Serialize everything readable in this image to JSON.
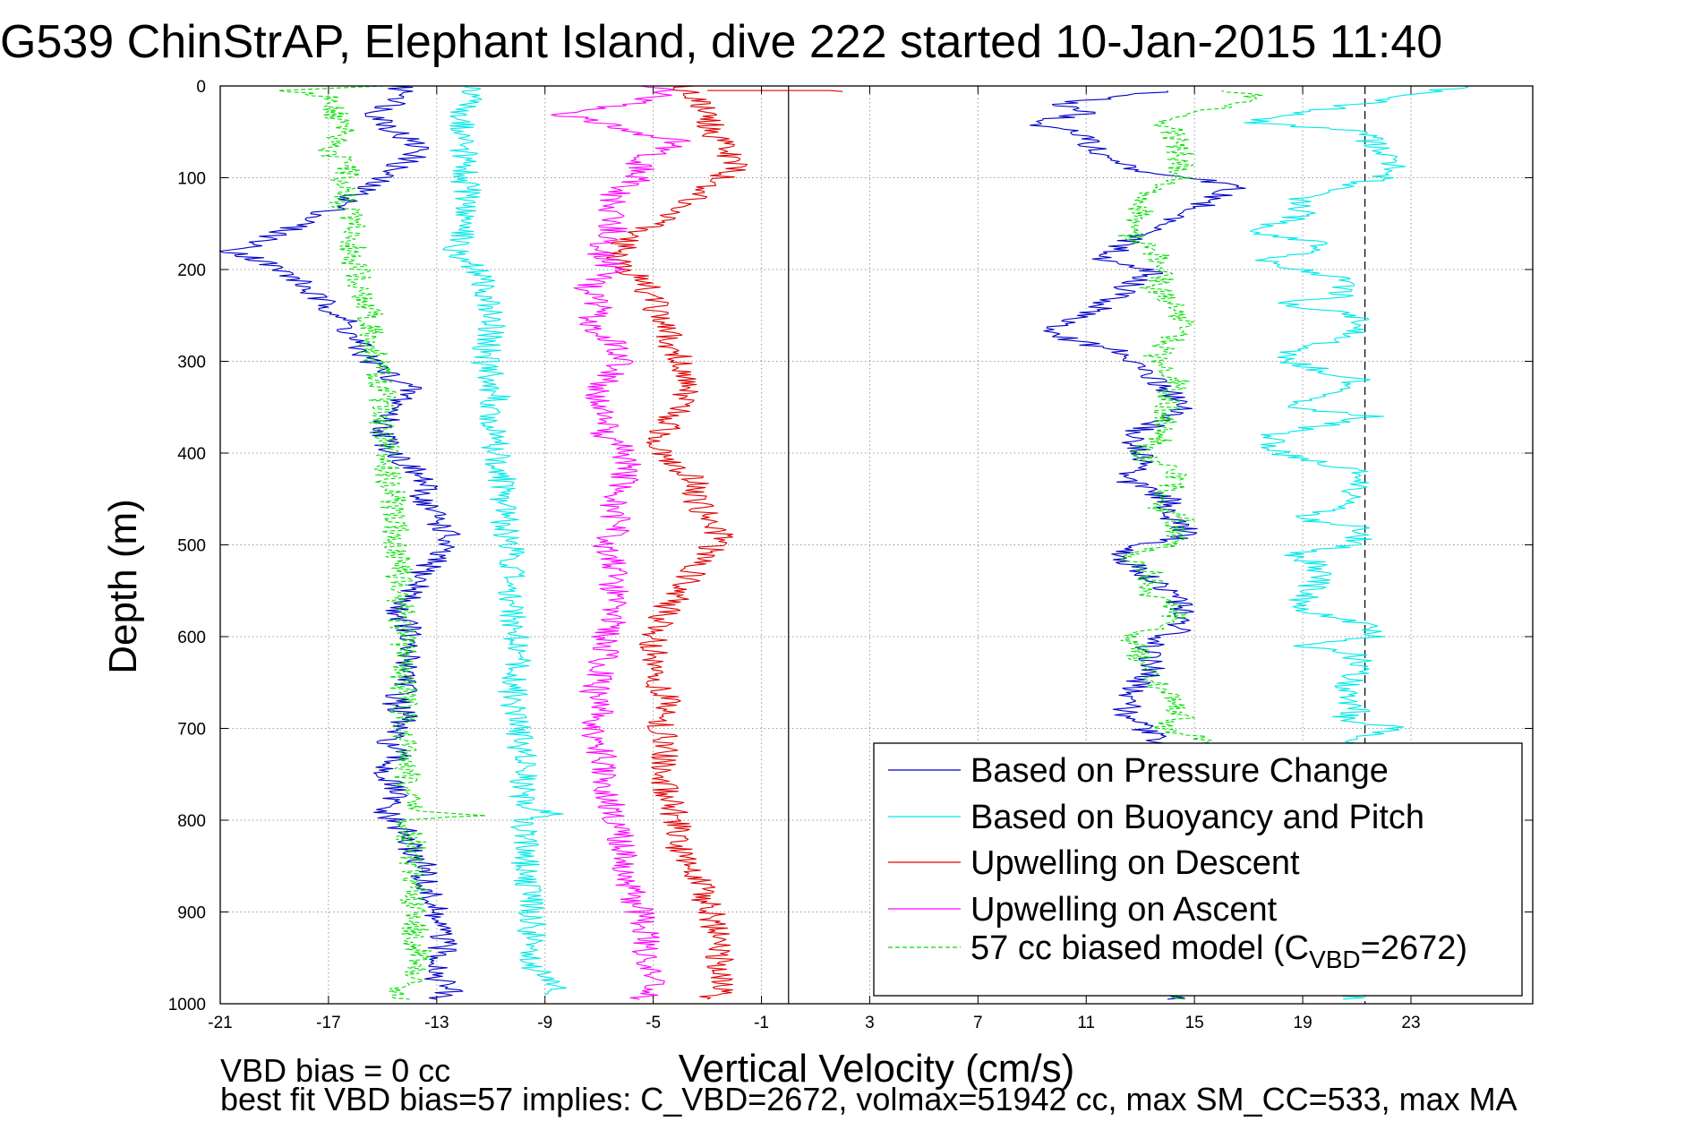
{
  "chart_data": {
    "type": "line",
    "title": "G539 ChinStrAP, Elephant Island, dive 222 started 10-Jan-2015 11:40",
    "xlabel": "Vertical Velocity (cm/s)",
    "ylabel": "Depth (m)",
    "xlim": [
      -21,
      27.5
    ],
    "ylim": [
      0,
      1000
    ],
    "y_reversed": true,
    "x_ticks": [
      -21,
      -17,
      -13,
      -9,
      -5,
      -1,
      3,
      7,
      11,
      15,
      19,
      23
    ],
    "y_ticks": [
      0,
      100,
      200,
      300,
      400,
      500,
      600,
      700,
      800,
      900,
      1000
    ],
    "grid": true,
    "legend_position": "bottom-right",
    "vlines": [
      {
        "x": 0,
        "style": "solid",
        "color": "#000000"
      },
      {
        "x": 21.3,
        "style": "dashed",
        "color": "#000000"
      }
    ],
    "series": [
      {
        "name": "Based on Pressure Change",
        "color": "#0000c8",
        "style": "solid",
        "segments": [
          {
            "depth": [
              0,
              10,
              30,
              50,
              70,
              90,
              110,
              130,
              150,
              170,
              180,
              190,
              210,
              230,
              250,
              270,
              290,
              310,
              330,
              350,
              370,
              390,
              410,
              430,
              450,
              470,
              490,
              510,
              530,
              550,
              570,
              590,
              610,
              630,
              650,
              670,
              690,
              710,
              730,
              750,
              770,
              790,
              810,
              830,
              850,
              870,
              890,
              910,
              930,
              950,
              970,
              985,
              995
            ],
            "velocity": [
              -14.5,
              -14.0,
              -15.2,
              -14.5,
              -13.5,
              -14.6,
              -15.6,
              -16.5,
              -18.0,
              -19.5,
              -20.5,
              -19.5,
              -18.2,
              -17.5,
              -16.5,
              -16.2,
              -15.8,
              -15.0,
              -14.0,
              -14.5,
              -15.0,
              -14.8,
              -14.2,
              -13.5,
              -13.5,
              -13.0,
              -12.6,
              -13.0,
              -13.5,
              -13.8,
              -14.5,
              -14.0,
              -14.2,
              -14.0,
              -14.0,
              -14.5,
              -14.2,
              -14.8,
              -14.5,
              -15.0,
              -14.5,
              -15.0,
              -14.3,
              -14.0,
              -13.5,
              -13.5,
              -13.2,
              -13.0,
              -12.8,
              -12.8,
              -13.0,
              -12.5,
              -13.0
            ]
          },
          {
            "depth": [
              995,
              985,
              960,
              940,
              910,
              880,
              850,
              820,
              790,
              760,
              730,
              710,
              700,
              690,
              670,
              650,
              630,
              610,
              590,
              570,
              550,
              530,
              510,
              500,
              490,
              470,
              450,
              430,
              410,
              390,
              380,
              370,
              350,
              330,
              310,
              290,
              270,
              250,
              230,
              210,
              200,
              190,
              170,
              150,
              130,
              110,
              100,
              90,
              70,
              50,
              40,
              30,
              20,
              10,
              5
            ],
            "velocity": [
              14.5,
              14.2,
              14.0,
              14.0,
              14.0,
              14.0,
              14.0,
              14.0,
              14.0,
              14.0,
              14.0,
              13.5,
              13.2,
              12.5,
              12.5,
              13.0,
              13.5,
              13.3,
              14.5,
              14.5,
              14.0,
              13.0,
              12.3,
              13.0,
              14.8,
              14.2,
              14.0,
              12.5,
              13.2,
              12.8,
              12.5,
              13.5,
              14.5,
              14.0,
              13.0,
              12.3,
              9.5,
              11.0,
              12.0,
              13.0,
              13.5,
              11.5,
              12.5,
              13.8,
              15.2,
              16.5,
              15.0,
              12.5,
              11.5,
              10.5,
              9.0,
              11.0,
              10.0,
              12.5,
              14.0
            ]
          }
        ]
      },
      {
        "name": "Based on Buoyancy and Pitch",
        "color": "#00e8e8",
        "style": "solid",
        "segments": [
          {
            "depth": [
              0,
              10,
              30,
              60,
              100,
              130,
              160,
              180,
              200,
              230,
              260,
              300,
              340,
              360,
              400,
              440,
              480,
              500,
              540,
              580,
              620,
              660,
              700,
              740,
              780,
              793,
              800,
              820,
              860,
              900,
              940,
              970,
              980,
              990
            ],
            "velocity": [
              -11.5,
              -11.8,
              -12.0,
              -12.0,
              -12.0,
              -11.8,
              -12.0,
              -12.3,
              -11.5,
              -11.2,
              -11.0,
              -11.2,
              -10.8,
              -11.0,
              -10.8,
              -10.5,
              -10.5,
              -10.3,
              -10.2,
              -10.2,
              -10.0,
              -10.2,
              -10.0,
              -9.8,
              -9.8,
              -8.7,
              -9.8,
              -9.8,
              -9.7,
              -9.5,
              -9.5,
              -9.3,
              -8.5,
              -9.0
            ]
          },
          {
            "depth": [
              995,
              990,
              975,
              940,
              900,
              860,
              820,
              780,
              740,
              710,
              700,
              690,
              680,
              660,
              640,
              620,
              610,
              600,
              590,
              570,
              560,
              540,
              520,
              510,
              500,
              480,
              470,
              460,
              440,
              420,
              400,
              380,
              360,
              350,
              320,
              300,
              290,
              270,
              250,
              235,
              230,
              210,
              190,
              180,
              170,
              160,
              140,
              120,
              100,
              80,
              60,
              50,
              40,
              20,
              10,
              0
            ],
            "velocity": [
              21.0,
              21.0,
              21.0,
              21.0,
              21.0,
              21.0,
              21.0,
              21.0,
              21.0,
              21.0,
              22.5,
              20.5,
              21.0,
              20.5,
              21.0,
              21.0,
              19.0,
              21.5,
              21.5,
              19.0,
              19.0,
              19.5,
              19.5,
              18.5,
              21.0,
              21.0,
              18.5,
              20.5,
              21.0,
              21.0,
              18.0,
              18.0,
              21.5,
              18.5,
              21.0,
              18.5,
              18.5,
              21.0,
              21.0,
              18.0,
              20.5,
              20.5,
              17.5,
              19.5,
              19.5,
              17.0,
              19.0,
              19.0,
              22.0,
              22.5,
              21.5,
              21.5,
              17.0,
              21.0,
              23.0,
              25.0
            ]
          }
        ]
      },
      {
        "name": "Upwelling on Descent",
        "color": "#e00000",
        "style": "solid",
        "segments": [
          {
            "depth": [
              0,
              10,
              30,
              50,
              70,
              90,
              110,
              130,
              150,
              170,
              190,
              210,
              230,
              250,
              270,
              290,
              310,
              330,
              350,
              370,
              390,
              410,
              430,
              450,
              470,
              490,
              510,
              530,
              550,
              570,
              590,
              610,
              630,
              650,
              670,
              690,
              710,
              730,
              750,
              770,
              790,
              810,
              830,
              850,
              870,
              890,
              910,
              930,
              950,
              970,
              985,
              995
            ],
            "velocity": [
              -4.0,
              -3.5,
              -3.0,
              -2.8,
              -2.3,
              -2.0,
              -3.0,
              -4.0,
              -5.0,
              -6.0,
              -6.3,
              -5.5,
              -5.0,
              -4.8,
              -4.5,
              -4.2,
              -3.8,
              -3.6,
              -4.0,
              -4.5,
              -4.8,
              -4.2,
              -3.5,
              -3.5,
              -3.0,
              -2.5,
              -3.0,
              -3.5,
              -4.0,
              -4.5,
              -4.8,
              -5.0,
              -5.0,
              -4.8,
              -4.5,
              -4.8,
              -4.6,
              -4.5,
              -4.8,
              -4.5,
              -4.3,
              -4.0,
              -4.0,
              -3.5,
              -3.2,
              -3.0,
              -2.8,
              -2.7,
              -2.5,
              -2.5,
              -2.2,
              -3.0
            ]
          },
          {
            "depth": [
              5,
              5,
              6
            ],
            "velocity": [
              -3.0,
              1.5,
              2.0
            ]
          }
        ]
      },
      {
        "name": "Upwelling on Ascent",
        "color": "#ff00ff",
        "style": "solid",
        "segments": [
          {
            "depth": [
              0,
              10,
              20,
              30,
              40,
              50,
              60,
              80,
              100,
              120,
              140,
              160,
              180,
              200,
              220,
              240,
              260,
              280,
              300,
              320,
              340,
              360,
              380,
              400,
              420,
              440,
              460,
              480,
              500,
              520,
              540,
              560,
              580,
              600,
              620,
              640,
              660,
              680,
              700,
              720,
              740,
              760,
              780,
              800,
              820,
              840,
              860,
              880,
              900,
              920,
              940,
              960,
              980,
              995
            ],
            "velocity": [
              -5.0,
              -4.5,
              -6.0,
              -8.5,
              -7.0,
              -6.0,
              -4.0,
              -5.5,
              -5.5,
              -6.5,
              -6.5,
              -6.5,
              -7.0,
              -6.5,
              -7.5,
              -7.0,
              -7.5,
              -6.5,
              -6.0,
              -6.8,
              -7.0,
              -6.5,
              -6.8,
              -6.0,
              -6.0,
              -6.2,
              -6.5,
              -6.3,
              -6.8,
              -6.5,
              -6.5,
              -6.3,
              -6.5,
              -6.8,
              -6.8,
              -7.0,
              -7.2,
              -7.0,
              -7.3,
              -7.0,
              -6.8,
              -6.8,
              -6.5,
              -6.5,
              -6.2,
              -6.0,
              -6.0,
              -5.8,
              -5.5,
              -5.3,
              -5.3,
              -5.0,
              -5.0,
              -5.5
            ]
          }
        ]
      },
      {
        "name": "57 cc biased model (C",
        "name_subscript": "VBD",
        "name_suffix": "=2672)",
        "color": "#00e000",
        "style": "dashed",
        "segments": [
          {
            "depth": [
              0,
              5,
              15,
              30,
              50,
              70,
              90,
              110,
              130,
              150,
              170,
              190,
              210,
              230,
              250,
              270,
              290,
              310,
              330,
              350,
              370,
              390,
              410,
              430,
              450,
              470,
              490,
              510,
              530,
              550,
              570,
              590,
              610,
              630,
              650,
              670,
              690,
              710,
              730,
              750,
              770,
              790,
              795,
              800,
              810,
              830,
              850,
              870,
              890,
              910,
              930,
              950,
              970,
              985,
              995
            ],
            "velocity": [
              -15.0,
              -18.5,
              -16.5,
              -16.8,
              -16.5,
              -17.0,
              -16.2,
              -16.5,
              -16.5,
              -16.0,
              -16.0,
              -16.2,
              -15.8,
              -15.8,
              -15.5,
              -15.5,
              -15.3,
              -15.2,
              -15.0,
              -15.0,
              -15.0,
              -14.8,
              -14.8,
              -14.8,
              -14.6,
              -14.6,
              -14.5,
              -14.5,
              -14.4,
              -14.4,
              -14.3,
              -14.3,
              -14.2,
              -14.2,
              -14.2,
              -14.2,
              -14.2,
              -14.1,
              -14.1,
              -14.1,
              -14.0,
              -14.0,
              -11.6,
              -14.0,
              -14.0,
              -13.9,
              -13.9,
              -13.8,
              -13.8,
              -13.8,
              -13.8,
              -13.7,
              -13.7,
              -14.5,
              -14.0
            ]
          },
          {
            "depth": [
              995,
              980,
              960,
              930,
              900,
              870,
              840,
              800,
              760,
              730,
              710,
              700,
              690,
              670,
              650,
              630,
              610,
              600,
              590,
              570,
              550,
              530,
              510,
              500,
              490,
              470,
              460,
              440,
              420,
              400,
              380,
              360,
              340,
              320,
              300,
              280,
              260,
              240,
              220,
              200,
              180,
              160,
              140,
              120,
              100,
              80,
              60,
              40,
              20,
              10,
              5
            ],
            "velocity": [
              14.5,
              14.3,
              14.3,
              14.2,
              14.2,
              14.2,
              14.2,
              14.1,
              14.1,
              14.2,
              15.5,
              13.5,
              14.5,
              14.5,
              13.5,
              13.0,
              13.0,
              12.5,
              14.2,
              14.2,
              13.2,
              13.5,
              12.5,
              14.0,
              14.2,
              14.5,
              13.5,
              14.2,
              14.2,
              12.8,
              14.0,
              14.0,
              14.0,
              14.5,
              13.5,
              14.0,
              14.5,
              14.5,
              13.5,
              14.0,
              13.5,
              12.5,
              13.0,
              13.0,
              14.5,
              14.5,
              14.3,
              14.0,
              16.5,
              17.5,
              16.0
            ]
          }
        ]
      }
    ],
    "annotations": [
      "VBD bias = 0 cc",
      "best fit VBD bias=57 implies: C_VBD=2672, volmax=51942 cc, max SM_CC=533, max MA"
    ]
  }
}
